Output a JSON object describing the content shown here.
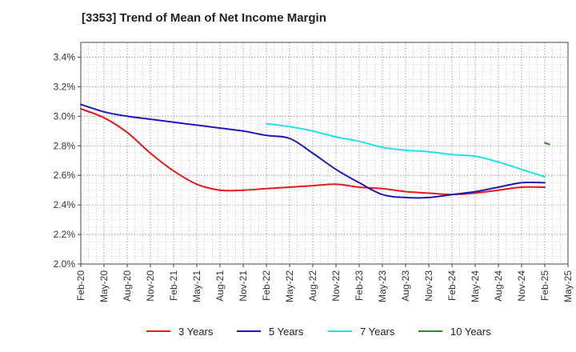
{
  "chart_data": {
    "type": "line",
    "title": "[3353]  Trend of Mean of Net Income Margin",
    "xlabel": "",
    "ylabel": "",
    "x_ticks": [
      "Feb-20",
      "May-20",
      "Aug-20",
      "Nov-20",
      "Feb-21",
      "May-21",
      "Aug-21",
      "Nov-21",
      "Feb-22",
      "May-22",
      "Aug-22",
      "Nov-22",
      "Feb-23",
      "May-23",
      "Aug-23",
      "Nov-23",
      "Feb-24",
      "May-24",
      "Aug-24",
      "Nov-24",
      "Feb-25",
      "May-25"
    ],
    "y_ticks": [
      "2.0%",
      "2.2%",
      "2.4%",
      "2.6%",
      "2.8%",
      "3.0%",
      "3.2%",
      "3.4%"
    ],
    "ylim": [
      2.0,
      3.5
    ],
    "y_unit": "%",
    "grid": true,
    "legend_position": "bottom",
    "series": [
      {
        "name": "3 Years",
        "color": "#e31a1c",
        "points": [
          [
            "Feb-20",
            3.05
          ],
          [
            "May-20",
            2.99
          ],
          [
            "Aug-20",
            2.89
          ],
          [
            "Nov-20",
            2.75
          ],
          [
            "Feb-21",
            2.63
          ],
          [
            "May-21",
            2.54
          ],
          [
            "Aug-21",
            2.5
          ],
          [
            "Nov-21",
            2.5
          ],
          [
            "Feb-22",
            2.51
          ],
          [
            "May-22",
            2.52
          ],
          [
            "Aug-22",
            2.53
          ],
          [
            "Nov-22",
            2.54
          ],
          [
            "Feb-23",
            2.52
          ],
          [
            "May-23",
            2.51
          ],
          [
            "Aug-23",
            2.49
          ],
          [
            "Nov-23",
            2.48
          ],
          [
            "Feb-24",
            2.47
          ],
          [
            "May-24",
            2.48
          ],
          [
            "Aug-24",
            2.5
          ],
          [
            "Nov-24",
            2.52
          ],
          [
            "Feb-25",
            2.52
          ]
        ]
      },
      {
        "name": "5 Years",
        "color": "#1a1ab8",
        "points": [
          [
            "Feb-20",
            3.08
          ],
          [
            "May-20",
            3.03
          ],
          [
            "Aug-20",
            3.0
          ],
          [
            "Nov-20",
            2.98
          ],
          [
            "Feb-21",
            2.96
          ],
          [
            "May-21",
            2.94
          ],
          [
            "Aug-21",
            2.92
          ],
          [
            "Nov-21",
            2.9
          ],
          [
            "Feb-22",
            2.87
          ],
          [
            "May-22",
            2.85
          ],
          [
            "Aug-22",
            2.75
          ],
          [
            "Nov-22",
            2.64
          ],
          [
            "Feb-23",
            2.55
          ],
          [
            "May-23",
            2.47
          ],
          [
            "Aug-23",
            2.45
          ],
          [
            "Nov-23",
            2.45
          ],
          [
            "Feb-24",
            2.47
          ],
          [
            "May-24",
            2.49
          ],
          [
            "Aug-24",
            2.52
          ],
          [
            "Nov-24",
            2.55
          ],
          [
            "Feb-25",
            2.55
          ]
        ]
      },
      {
        "name": "7 Years",
        "color": "#22e0e8",
        "points": [
          [
            "Feb-22",
            2.95
          ],
          [
            "May-22",
            2.93
          ],
          [
            "Aug-22",
            2.9
          ],
          [
            "Nov-22",
            2.86
          ],
          [
            "Feb-23",
            2.83
          ],
          [
            "May-23",
            2.79
          ],
          [
            "Aug-23",
            2.77
          ],
          [
            "Nov-23",
            2.76
          ],
          [
            "Feb-24",
            2.74
          ],
          [
            "May-24",
            2.73
          ],
          [
            "Aug-24",
            2.69
          ],
          [
            "Nov-24",
            2.64
          ],
          [
            "Feb-25",
            2.59
          ]
        ]
      },
      {
        "name": "10 Years",
        "color": "#2a8a2a",
        "points": [
          [
            "Feb-25",
            2.82
          ],
          [
            "Feb-25+",
            2.81
          ]
        ]
      }
    ]
  }
}
